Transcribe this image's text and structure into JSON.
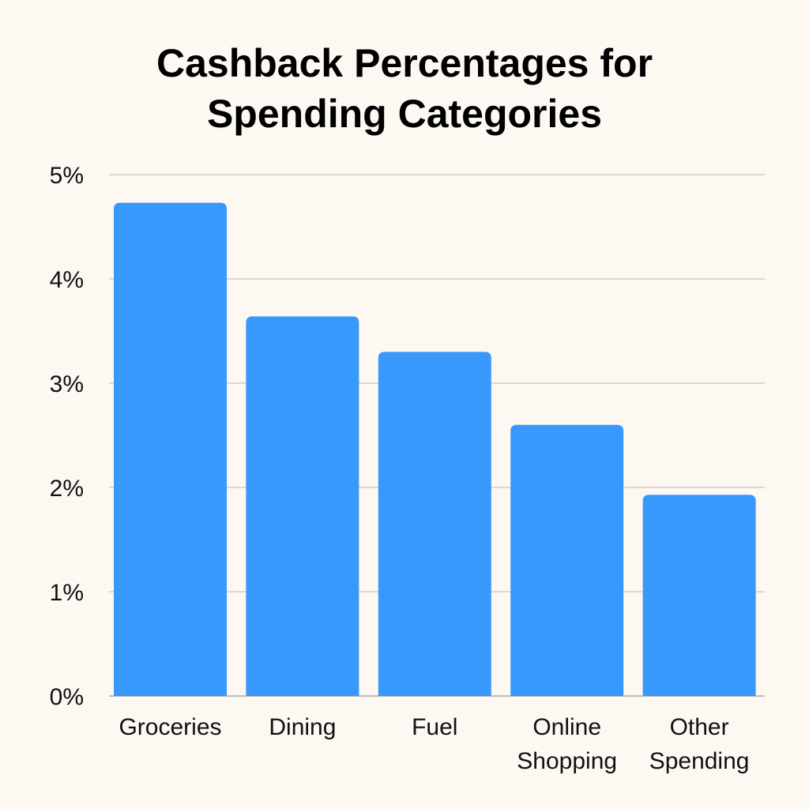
{
  "chart_data": {
    "type": "bar",
    "title_lines": [
      "Cashback Percentages for",
      "Spending Categories"
    ],
    "categories": [
      [
        "Groceries"
      ],
      [
        "Dining"
      ],
      [
        "Fuel"
      ],
      [
        "Online",
        "Shopping"
      ],
      [
        "Other",
        "Spending"
      ]
    ],
    "values": [
      4.73,
      3.64,
      3.3,
      2.6,
      1.93
    ],
    "unit": "%",
    "ylim": [
      0,
      5
    ],
    "yticks": [
      "0%",
      "1%",
      "2%",
      "3%",
      "4%",
      "5%"
    ],
    "grid": true,
    "bar_color": "#3998fb",
    "background": "#fdf8f2"
  }
}
